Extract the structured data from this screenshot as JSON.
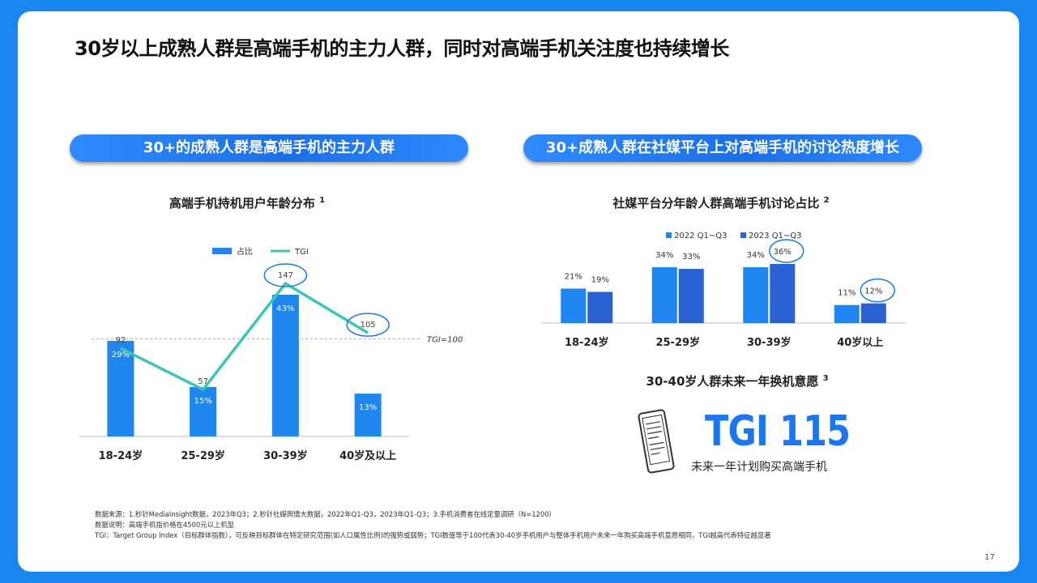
{
  "title": "30岁以上成熟人群是高端手机的主力人群，同时对高端手机关注度也持续增长",
  "left_banner": "30+的成熟人群是高端手机的主力人群",
  "right_banner": "30+成熟人群在社媒平台上对高端手机的讨论热度增长",
  "footnotes": [
    "数据来源：1.秒针MediaInsight数据，2023年Q3；2.秒针社媒舆情大数据，2022年Q1-Q3，2023年Q1-Q3；3.手机消费者在线定量调研（N=1200）",
    "数据说明：高端手机指价格在4500元以上机型",
    "TGI：Target Group Index（目标群体指数），可反映目标群体在特定研究范围(如人口属性比例)的强势或弱势；TGI数值等于100代表30-40岁手机用户与整体手机用户未来一年购买高端手机意愿相同，TGI越高代表特征越显著"
  ],
  "page_number": "17",
  "tgi_box": {
    "title": "30-40岁人群未来一年换机意愿",
    "title_sup": "3",
    "big_value": "TGI 115",
    "subtitle": "未来一年计划购买高端手机"
  },
  "chart_data": [
    {
      "type": "bar",
      "title": "高端手机持机用户年龄分布",
      "title_sup": "1",
      "categories": [
        "18-24岁",
        "25-29岁",
        "30-39岁",
        "40岁及以上"
      ],
      "series": [
        {
          "name": "占比",
          "type": "bar",
          "values": [
            29,
            15,
            43,
            13
          ],
          "labels": [
            "29%",
            "15%",
            "43%",
            "13%"
          ],
          "color": "#1f86f0"
        },
        {
          "name": "TGI",
          "type": "line",
          "values": [
            92,
            57,
            147,
            105
          ],
          "labels": [
            "92",
            "57",
            "147",
            "105"
          ],
          "color": "#3cc6b6"
        }
      ],
      "reference_line": {
        "value": 100,
        "label": "TGI=100"
      },
      "highlighted": [
        "30-39岁",
        "40岁及以上"
      ],
      "colors": {
        "bar": "#1f86f0",
        "line": "#3cc6b6",
        "highlight": "#1f77e8"
      }
    },
    {
      "type": "bar",
      "title": "社媒平台分年龄人群高端手机讨论占比",
      "title_sup": "2",
      "categories": [
        "18-24岁",
        "25-29岁",
        "30-39岁",
        "40岁以上"
      ],
      "series": [
        {
          "name": "2022 Q1~Q3",
          "values": [
            21,
            34,
            34,
            11
          ],
          "labels": [
            "21%",
            "34%",
            "34%",
            "11%"
          ],
          "color": "#1f86f0"
        },
        {
          "name": "2023 Q1~Q3",
          "values": [
            19,
            33,
            36,
            12
          ],
          "labels": [
            "19%",
            "33%",
            "36%",
            "12%"
          ],
          "color": "#2a62d4"
        }
      ],
      "highlighted": [
        "30-39岁",
        "40岁以上"
      ]
    }
  ]
}
